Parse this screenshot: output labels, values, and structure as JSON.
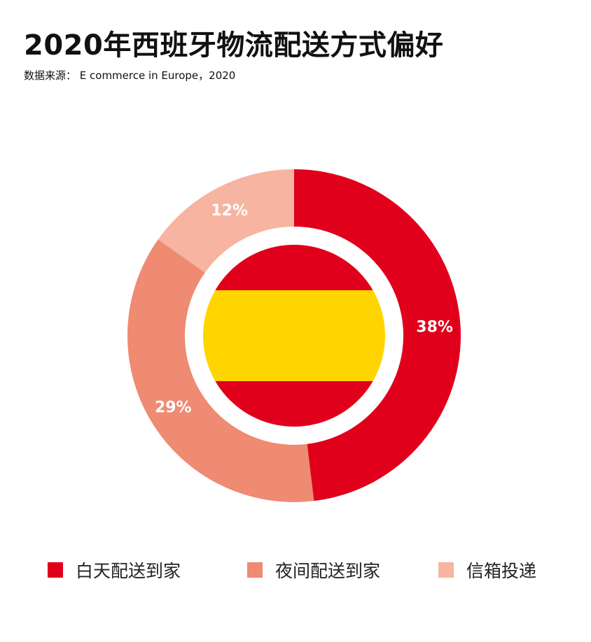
{
  "header": {
    "title": "2020年西班牙物流配送方式偏好",
    "source": "数据来源： E commerce in Europe，2020"
  },
  "colors": {
    "daytime": "#e1001b",
    "night": "#ef8a73",
    "mailbox": "#f6b4a1",
    "flag_red": "#e1001b",
    "flag_yellow": "#ffd500"
  },
  "chart_data": {
    "type": "pie",
    "style": "donut",
    "categories": [
      "白天配送到家",
      "夜间配送到家",
      "信箱投递"
    ],
    "values": [
      38,
      29,
      12
    ],
    "labels": [
      "38%",
      "29%",
      "12%"
    ],
    "unit": "%",
    "legend_position": "bottom",
    "center_image": "spain-flag"
  },
  "legend": {
    "items": [
      {
        "label": "白天配送到家",
        "color": "#e1001b"
      },
      {
        "label": "夜间配送到家",
        "color": "#ef8a73"
      },
      {
        "label": "信箱投递",
        "color": "#f6b4a1"
      }
    ]
  }
}
